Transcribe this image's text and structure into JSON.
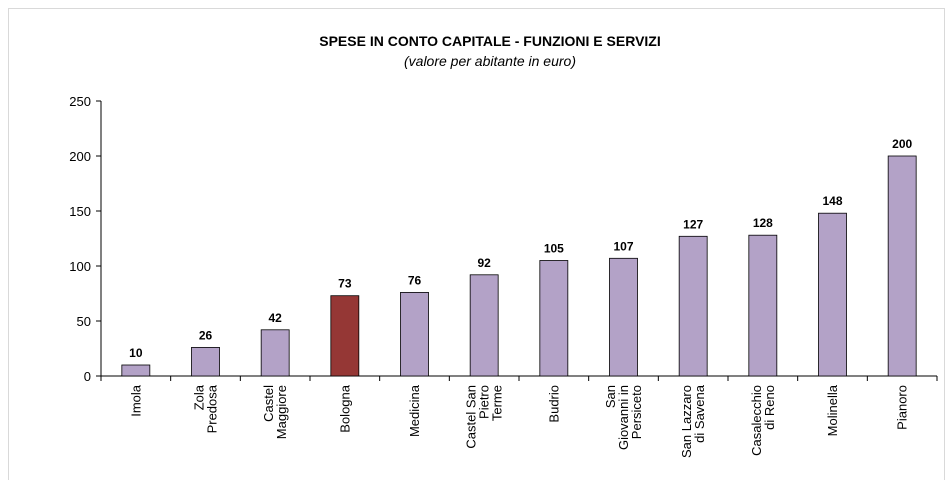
{
  "chart_data": {
    "type": "bar",
    "title": "SPESE IN CONTO CAPITALE - FUNZIONI E SERVIZI",
    "subtitle": "(valore per abitante in euro)",
    "categories": [
      "Imola",
      "Zola Predosa",
      "Castel Maggiore",
      "Bologna",
      "Medicina",
      "Castel San Pietro Terme",
      "Budrio",
      "San Giovanni in Persiceto",
      "San Lazzaro di Savena",
      "Casalecchio di Reno",
      "Molinella",
      "Pianoro"
    ],
    "values": [
      10,
      26,
      42,
      73,
      76,
      92,
      105,
      107,
      127,
      128,
      148,
      200
    ],
    "colors": [
      "#b3a2c7",
      "#b3a2c7",
      "#b3a2c7",
      "#953735",
      "#b3a2c7",
      "#b3a2c7",
      "#b3a2c7",
      "#b3a2c7",
      "#b3a2c7",
      "#b3a2c7",
      "#b3a2c7",
      "#b3a2c7"
    ],
    "ylim": [
      0,
      250
    ],
    "yticks": [
      0,
      50,
      100,
      150,
      200,
      250
    ],
    "grid": false
  }
}
